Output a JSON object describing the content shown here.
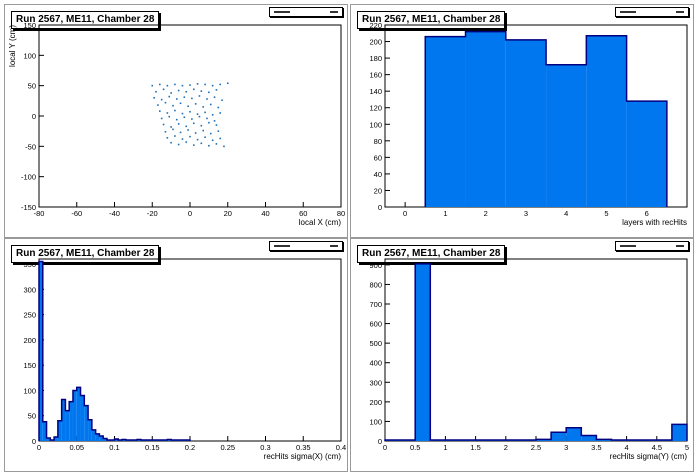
{
  "colors": {
    "fill": "#0077ee",
    "line": "#000080",
    "marker": "#1e6fb8"
  },
  "chart_data": [
    {
      "type": "scatter",
      "title": "Run 2567, ME11, Chamber 28",
      "xlabel": "local X (cm)",
      "ylabel": "local Y (cm)",
      "xlim": [
        -80,
        80
      ],
      "ylim": [
        -150,
        150
      ],
      "xticks": [
        -80,
        -60,
        -40,
        -20,
        0,
        20,
        40,
        60,
        80
      ],
      "yticks": [
        -150,
        -100,
        -50,
        0,
        50,
        100,
        150
      ],
      "points": [
        [
          -20,
          50
        ],
        [
          -16,
          52
        ],
        [
          -12,
          50
        ],
        [
          -8,
          52
        ],
        [
          -4,
          50
        ],
        [
          0,
          51
        ],
        [
          4,
          53
        ],
        [
          8,
          52
        ],
        [
          12,
          50
        ],
        [
          16,
          52
        ],
        [
          20,
          54
        ],
        [
          -18,
          40
        ],
        [
          -14,
          44
        ],
        [
          -10,
          38
        ],
        [
          -6,
          42
        ],
        [
          -2,
          40
        ],
        [
          2,
          44
        ],
        [
          6,
          41
        ],
        [
          10,
          39
        ],
        [
          14,
          43
        ],
        [
          -19,
          30
        ],
        [
          -15,
          27
        ],
        [
          -11,
          32
        ],
        [
          -7,
          28
        ],
        [
          -3,
          31
        ],
        [
          1,
          29
        ],
        [
          5,
          33
        ],
        [
          9,
          28
        ],
        [
          13,
          31
        ],
        [
          17,
          26
        ],
        [
          -17,
          18
        ],
        [
          -13,
          22
        ],
        [
          -9,
          17
        ],
        [
          -5,
          21
        ],
        [
          -1,
          16
        ],
        [
          3,
          20
        ],
        [
          7,
          15
        ],
        [
          11,
          19
        ],
        [
          15,
          14
        ],
        [
          -16,
          8
        ],
        [
          -12,
          5
        ],
        [
          -8,
          9
        ],
        [
          -4,
          4
        ],
        [
          0,
          7
        ],
        [
          4,
          3
        ],
        [
          8,
          6
        ],
        [
          12,
          2
        ],
        [
          16,
          5
        ],
        [
          -15,
          -4
        ],
        [
          -11,
          -1
        ],
        [
          -7,
          -6
        ],
        [
          -3,
          -2
        ],
        [
          1,
          -5
        ],
        [
          5,
          -1
        ],
        [
          9,
          -4
        ],
        [
          13,
          -8
        ],
        [
          -14,
          -14
        ],
        [
          -10,
          -18
        ],
        [
          -6,
          -13
        ],
        [
          -2,
          -17
        ],
        [
          2,
          -12
        ],
        [
          6,
          -16
        ],
        [
          10,
          -11
        ],
        [
          14,
          -15
        ],
        [
          -13,
          -26
        ],
        [
          -9,
          -22
        ],
        [
          -5,
          -27
        ],
        [
          -1,
          -23
        ],
        [
          3,
          -28
        ],
        [
          7,
          -24
        ],
        [
          11,
          -29
        ],
        [
          15,
          -25
        ],
        [
          -12,
          -36
        ],
        [
          -8,
          -33
        ],
        [
          -4,
          -38
        ],
        [
          0,
          -34
        ],
        [
          4,
          -39
        ],
        [
          8,
          -35
        ],
        [
          12,
          -40
        ],
        [
          16,
          -37
        ],
        [
          -10,
          -44
        ],
        [
          -6,
          -47
        ],
        [
          -2,
          -43
        ],
        [
          2,
          -48
        ],
        [
          6,
          -45
        ],
        [
          10,
          -49
        ],
        [
          14,
          -46
        ],
        [
          18,
          -50
        ]
      ]
    },
    {
      "type": "bar",
      "title": "Run 2567, ME11, Chamber 28",
      "xlabel": "layers with recHits",
      "ylabel": "",
      "xlim": [
        -0.5,
        7
      ],
      "ylim": [
        0,
        220
      ],
      "xticks": [
        0,
        1,
        2,
        3,
        4,
        5,
        6
      ],
      "yticks": [
        0,
        20,
        40,
        60,
        80,
        100,
        120,
        140,
        160,
        180,
        200,
        220
      ],
      "bin_width": 1,
      "x": [
        1,
        2,
        3,
        4,
        5,
        6
      ],
      "values": [
        206,
        212,
        202,
        172,
        207,
        128
      ]
    },
    {
      "type": "bar",
      "title": "Run 2567, ME11, Chamber 28",
      "xlabel": "recHits sigma(X) (cm)",
      "ylabel": "",
      "xlim": [
        0,
        0.4
      ],
      "ylim": [
        0,
        360
      ],
      "xticks": [
        0,
        0.05,
        0.1,
        0.15,
        0.2,
        0.25,
        0.3,
        0.35,
        0.4
      ],
      "yticks": [
        0,
        50,
        100,
        150,
        200,
        250,
        300,
        350
      ],
      "bin_width": 0.005,
      "x": [
        0.0025,
        0.0075,
        0.0125,
        0.0175,
        0.0225,
        0.0275,
        0.0325,
        0.0375,
        0.0425,
        0.0475,
        0.0525,
        0.0575,
        0.0625,
        0.0675,
        0.0725,
        0.0775,
        0.0825,
        0.0875,
        0.0925,
        0.0975,
        0.1025,
        0.1075,
        0.1125,
        0.1175,
        0.1225,
        0.1275,
        0.1325,
        0.1375,
        0.1425,
        0.1475,
        0.1525,
        0.1575,
        0.1625,
        0.1675,
        0.1725,
        0.1775,
        0.1825,
        0.1875,
        0.1925,
        0.1975
      ],
      "values": [
        355,
        38,
        6,
        2,
        8,
        40,
        82,
        60,
        78,
        100,
        106,
        90,
        70,
        42,
        22,
        14,
        10,
        5,
        2,
        2,
        4,
        2,
        3,
        2,
        2,
        2,
        3,
        2,
        2,
        2,
        2,
        2,
        2,
        2,
        3,
        2,
        2,
        2,
        2,
        2
      ]
    },
    {
      "type": "bar",
      "title": "Run 2567, ME11, Chamber 28",
      "xlabel": "recHits sigma(Y) (cm)",
      "ylabel": "",
      "xlim": [
        0,
        5
      ],
      "ylim": [
        0,
        930
      ],
      "xticks": [
        0,
        0.5,
        1,
        1.5,
        2,
        2.5,
        3,
        3.5,
        4,
        4.5,
        5
      ],
      "yticks": [
        0,
        100,
        200,
        300,
        400,
        500,
        600,
        700,
        800,
        900
      ],
      "bin_width": 0.25,
      "x": [
        0.125,
        0.375,
        0.625,
        0.875,
        1.125,
        1.375,
        1.625,
        1.875,
        2.125,
        2.375,
        2.625,
        2.875,
        3.125,
        3.375,
        3.625,
        3.875,
        4.125,
        4.375,
        4.625,
        4.875
      ],
      "values": [
        5,
        5,
        905,
        5,
        5,
        5,
        5,
        5,
        5,
        5,
        8,
        45,
        68,
        28,
        8,
        5,
        5,
        5,
        5,
        85
      ]
    }
  ]
}
